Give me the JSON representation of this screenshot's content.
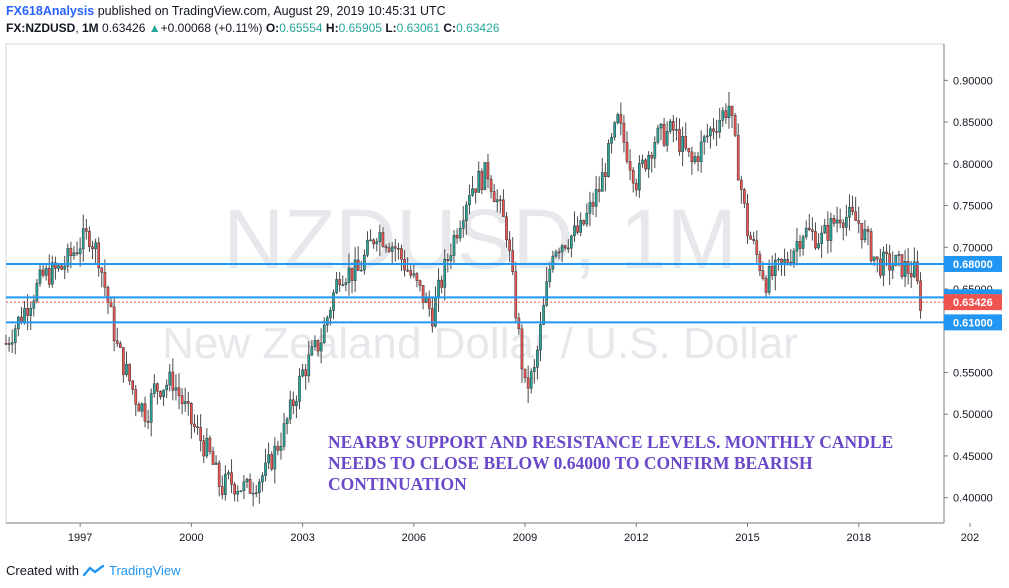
{
  "header": {
    "publisher": "FX618Analysis",
    "published_text": "published on TradingView.com, August 29, 2019 10:45:31 UTC",
    "symbol": "FX:NZDUSD",
    "interval": "1M",
    "last": "0.63426",
    "change_arrow": "▲",
    "change": "+0.00068 (+0.11%)",
    "o_label": "O:",
    "o": "0.65554",
    "h_label": "H:",
    "h": "0.65905",
    "l_label": "L:",
    "l": "0.63061",
    "c_label": "C:",
    "c": "0.63426"
  },
  "footer": {
    "created_with": "Created with",
    "brand": "TradingView"
  },
  "colors": {
    "up": "#26a69a",
    "down": "#ef5350",
    "line": "#2196f3",
    "annotation": "#6a48c9",
    "price_tag": "#ef5350"
  },
  "chart_data": {
    "type": "candlestick",
    "watermark_symbol": "NZDUSD, 1M",
    "watermark_name": "New Zealand Dollar / U.S. Dollar",
    "x_ticks": [
      "1997",
      "2000",
      "2003",
      "2006",
      "2009",
      "2012",
      "2015",
      "2018",
      "202"
    ],
    "y_ticks": [
      "0.90000",
      "0.85000",
      "0.80000",
      "0.75000",
      "0.70000",
      "0.65000",
      "0.55000",
      "0.50000",
      "0.45000",
      "0.40000"
    ],
    "ylim": [
      0.38,
      0.92
    ],
    "xlim": [
      1995.0,
      2020.3
    ],
    "levels": [
      {
        "value": 0.68,
        "label": "0.68000"
      },
      {
        "value": 0.64,
        "label": "0.64000"
      },
      {
        "value": 0.61,
        "label": "0.61000"
      }
    ],
    "current_price": {
      "value": 0.63426,
      "label": "0.63426"
    },
    "close_path": [
      [
        1995.0,
        0.585
      ],
      [
        1995.5,
        0.625
      ],
      [
        1996.0,
        0.665
      ],
      [
        1996.5,
        0.675
      ],
      [
        1997.0,
        0.705
      ],
      [
        1997.25,
        0.715
      ],
      [
        1997.5,
        0.69
      ],
      [
        1998.0,
        0.58
      ],
      [
        1998.5,
        0.52
      ],
      [
        1998.8,
        0.5
      ],
      [
        1999.0,
        0.53
      ],
      [
        1999.5,
        0.54
      ],
      [
        2000.0,
        0.49
      ],
      [
        2000.5,
        0.45
      ],
      [
        2000.8,
        0.41
      ],
      [
        2001.0,
        0.42
      ],
      [
        2001.5,
        0.41
      ],
      [
        2002.0,
        0.43
      ],
      [
        2002.5,
        0.48
      ],
      [
        2003.0,
        0.55
      ],
      [
        2003.5,
        0.59
      ],
      [
        2004.0,
        0.67
      ],
      [
        2004.5,
        0.67
      ],
      [
        2005.0,
        0.72
      ],
      [
        2005.5,
        0.7
      ],
      [
        2006.0,
        0.66
      ],
      [
        2006.5,
        0.62
      ],
      [
        2007.0,
        0.7
      ],
      [
        2007.5,
        0.77
      ],
      [
        2008.0,
        0.79
      ],
      [
        2008.5,
        0.72
      ],
      [
        2009.0,
        0.53
      ],
      [
        2009.25,
        0.55
      ],
      [
        2009.75,
        0.7
      ],
      [
        2010.5,
        0.72
      ],
      [
        2011.0,
        0.77
      ],
      [
        2011.5,
        0.85
      ],
      [
        2012.0,
        0.78
      ],
      [
        2012.5,
        0.83
      ],
      [
        2013.0,
        0.84
      ],
      [
        2013.5,
        0.8
      ],
      [
        2014.0,
        0.84
      ],
      [
        2014.5,
        0.87
      ],
      [
        2015.0,
        0.72
      ],
      [
        2015.5,
        0.66
      ],
      [
        2016.0,
        0.68
      ],
      [
        2016.5,
        0.72
      ],
      [
        2017.0,
        0.71
      ],
      [
        2017.5,
        0.74
      ],
      [
        2018.0,
        0.73
      ],
      [
        2018.5,
        0.68
      ],
      [
        2019.0,
        0.68
      ],
      [
        2019.5,
        0.67
      ],
      [
        2019.67,
        0.634
      ]
    ]
  },
  "annotation": {
    "text": "NEARBY SUPPORT AND RESISTANCE LEVELS. MONTHLY CANDLE NEEDS TO CLOSE BELOW 0.64000 TO CONFIRM BEARISH CONTINUATION"
  }
}
